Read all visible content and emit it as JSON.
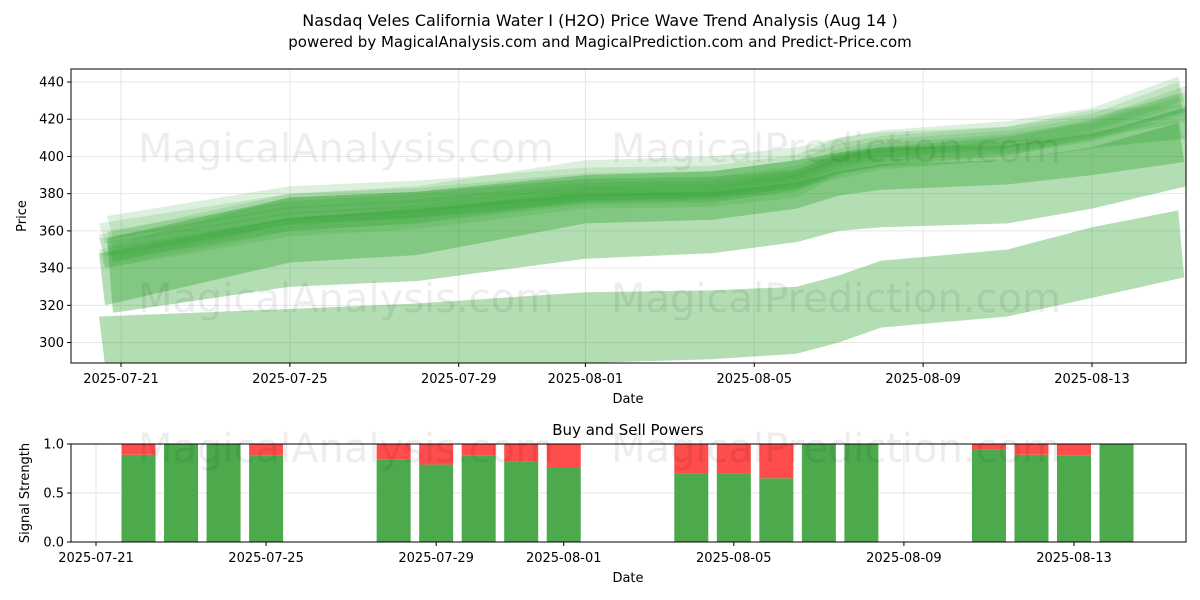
{
  "header": {
    "title": "Nasdaq Veles California Water I (H2O) Price Wave Trend Analysis (Aug 14 )",
    "subtitle": "powered by MagicalAnalysis.com and MagicalPrediction.com and Predict-Price.com"
  },
  "watermarks": [
    "MagicalAnalysis.com",
    "MagicalPrediction.com"
  ],
  "colors": {
    "band": "#2ca02c",
    "buy": "#4caa4c",
    "sell": "#ff4c4c",
    "grid": "#e6e6e6"
  },
  "chart_data": [
    {
      "type": "area",
      "xlabel": "Date",
      "ylabel": "Price",
      "ylim": [
        289,
        447
      ],
      "yticks": [
        300,
        320,
        340,
        360,
        380,
        400,
        420,
        440
      ],
      "xticks": [
        "2025-07-21",
        "2025-07-25",
        "2025-07-29",
        "2025-08-01",
        "2025-08-05",
        "2025-08-09",
        "2025-08-13"
      ],
      "x": [
        "2025-07-21",
        "2025-07-25",
        "2025-07-28",
        "2025-08-01",
        "2025-08-04",
        "2025-08-06",
        "2025-08-07",
        "2025-08-08",
        "2025-08-11",
        "2025-08-13",
        "2025-08-14"
      ],
      "grid": true,
      "series": [
        {
          "upper": [
            350,
            367,
            371,
            382,
            383,
            390,
            400,
            405,
            410,
            420,
            440
          ],
          "lower": [
            340,
            357,
            361,
            372,
            373,
            378,
            390,
            395,
            400,
            410,
            420
          ]
        },
        {
          "upper": [
            354,
            370,
            374,
            384,
            385,
            392,
            401,
            405,
            411,
            418,
            432
          ],
          "lower": [
            344,
            360,
            364,
            374,
            375,
            382,
            391,
            395,
            401,
            408,
            422
          ]
        },
        {
          "upper": [
            356,
            373,
            377,
            386,
            387,
            393,
            402,
            407,
            412,
            419,
            434
          ],
          "lower": [
            346,
            363,
            367,
            376,
            377,
            383,
            392,
            397,
            402,
            409,
            424
          ]
        },
        {
          "upper": [
            360,
            376,
            380,
            388,
            389,
            395,
            404,
            409,
            414,
            421,
            436
          ],
          "lower": [
            350,
            366,
            370,
            378,
            379,
            385,
            394,
            399,
            404,
            411,
            426
          ]
        },
        {
          "upper": [
            364,
            380,
            383,
            391,
            392,
            398,
            407,
            411,
            416,
            423,
            440
          ],
          "lower": [
            353,
            369,
            372,
            380,
            381,
            387,
            396,
            400,
            405,
            412,
            428
          ]
        },
        {
          "upper": [
            368,
            384,
            387,
            394,
            395,
            401,
            410,
            414,
            419,
            426,
            443
          ],
          "lower": [
            356,
            372,
            375,
            382,
            383,
            389,
            398,
            402,
            407,
            414,
            430
          ]
        },
        {
          "upper": [
            358,
            380,
            384,
            398,
            400,
            405,
            410,
            413,
            416,
            425,
            428
          ],
          "lower": [
            340,
            360,
            364,
            376,
            378,
            383,
            388,
            393,
            398,
            405,
            410
          ]
        },
        {
          "upper": [
            352,
            378,
            381,
            388,
            389,
            393,
            401,
            404,
            408,
            413,
            420
          ],
          "lower": [
            343,
            364,
            367,
            375,
            376,
            381,
            391,
            394,
            398,
            404,
            410
          ]
        },
        {
          "upper": [
            348,
            367,
            372,
            380,
            381,
            386,
            392,
            396,
            398,
            405,
            418
          ],
          "lower": [
            320,
            343,
            347,
            364,
            366,
            372,
            379,
            382,
            385,
            390,
            397
          ]
        },
        {
          "upper": [
            356,
            378,
            381,
            390,
            392,
            398,
            402,
            405,
            406,
            412,
            428
          ],
          "lower": [
            316,
            330,
            333,
            345,
            348,
            354,
            360,
            362,
            364,
            372,
            386
          ]
        },
        {
          "upper": [
            314,
            318,
            321,
            327,
            328,
            330,
            336,
            344,
            350,
            362,
            371
          ],
          "lower": [
            288,
            289,
            289,
            289,
            291,
            294,
            300,
            308,
            314,
            324,
            335
          ]
        }
      ]
    },
    {
      "type": "bar",
      "title": "Buy and Sell Powers",
      "xlabel": "Date",
      "ylabel": "Signal Strength",
      "ylim": [
        0,
        1
      ],
      "yticks": [
        "0.0",
        "0.5",
        "1.0"
      ],
      "xticks": [
        "2025-07-21",
        "2025-07-25",
        "2025-07-29",
        "2025-08-01",
        "2025-08-05",
        "2025-08-09",
        "2025-08-13"
      ],
      "categories": [
        "2025-07-22",
        "2025-07-23",
        "2025-07-24",
        "2025-07-25",
        "2025-07-28",
        "2025-07-29",
        "2025-07-30",
        "2025-07-31",
        "2025-08-01",
        "2025-08-04",
        "2025-08-05",
        "2025-08-06",
        "2025-08-07",
        "2025-08-08",
        "2025-08-11",
        "2025-08-12",
        "2025-08-13",
        "2025-08-14"
      ],
      "buy": [
        0.89,
        1.0,
        1.0,
        0.88,
        0.84,
        0.79,
        0.88,
        0.82,
        0.76,
        0.7,
        0.7,
        0.65,
        1.0,
        1.0,
        0.94,
        0.89,
        0.88,
        1.0
      ],
      "sell": [
        0.11,
        0.0,
        0.0,
        0.12,
        0.16,
        0.21,
        0.12,
        0.18,
        0.24,
        0.3,
        0.3,
        0.35,
        0.0,
        0.0,
        0.06,
        0.11,
        0.12,
        0.0
      ]
    }
  ]
}
